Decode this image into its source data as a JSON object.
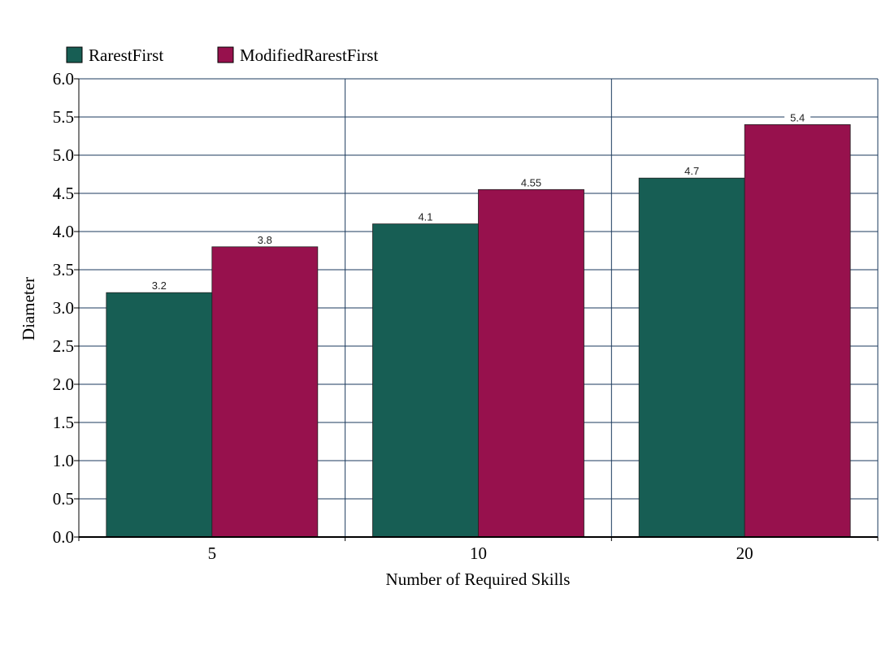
{
  "chart_data": {
    "type": "bar",
    "title": "",
    "xlabel": "Number of Required Skills",
    "ylabel": "Diameter",
    "categories": [
      "5",
      "10",
      "20"
    ],
    "series": [
      {
        "name": "RarestFirst",
        "color": "#175e54",
        "values": [
          3.2,
          4.1,
          4.7
        ],
        "labels": [
          "3.2",
          "4.1",
          "4.7"
        ]
      },
      {
        "name": "ModifiedRarestFirst",
        "color": "#97114d",
        "values": [
          3.8,
          4.55,
          5.4
        ],
        "labels": [
          "3.8",
          "4.55",
          "5.4"
        ]
      }
    ],
    "ylim": [
      0,
      6
    ],
    "yticks": [
      "0.0",
      "0.5",
      "1.0",
      "1.5",
      "2.0",
      "2.5",
      "3.0",
      "3.5",
      "4.0",
      "4.5",
      "5.0",
      "5.5",
      "6.0"
    ],
    "grid": true,
    "legend_position": "top-left",
    "grid_color": "#1b3a5c"
  }
}
